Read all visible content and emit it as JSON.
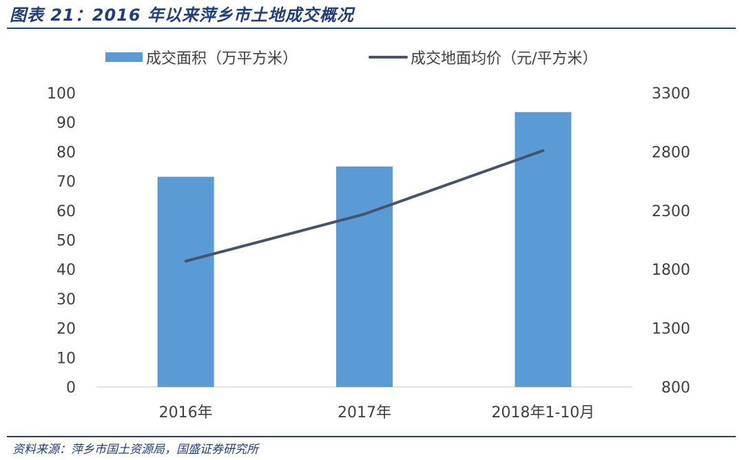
{
  "title": "图表 21：2016 年以来萍乡市土地成交概况",
  "source": "资料来源：萍乡市国土资源局，国盛证券研究所",
  "colors": {
    "bar": "#5b9bd5",
    "line": "#44546a",
    "title": "#1f3f7a"
  },
  "chart_data": {
    "type": "bar",
    "categories": [
      "2016年",
      "2017年",
      "2018年1-10月"
    ],
    "series": [
      {
        "name": "成交面积（万平方米）",
        "type": "bar",
        "axis": "left",
        "values": [
          71.5,
          75,
          93.5
        ]
      },
      {
        "name": "成交地面均价（元/平方米）",
        "type": "line",
        "axis": "right",
        "values": [
          1870,
          2270,
          2810
        ]
      }
    ],
    "y_left": {
      "min": 0,
      "max": 100,
      "ticks": [
        "0",
        "10",
        "20",
        "30",
        "40",
        "50",
        "60",
        "70",
        "80",
        "90",
        "100"
      ]
    },
    "y_right": {
      "min": 800,
      "max": 3300,
      "ticks": [
        "800",
        "1300",
        "1800",
        "2300",
        "2800",
        "3300"
      ]
    },
    "legend_position": "top",
    "grid": false
  }
}
